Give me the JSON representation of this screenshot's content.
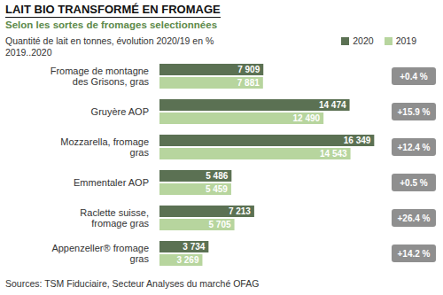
{
  "chart_data": {
    "type": "bar",
    "orientation": "horizontal",
    "title": "LAIT BIO TRANSFORMÉ EN FROMAGE",
    "subtitle": "Selon les sortes de fromages selectionnées",
    "description": "Quantité de lait en tonnes, évolution 2020/19 en %",
    "period": "2019..2020",
    "categories": [
      "Fromage de montagne des Grisons, gras",
      "Gruyère AOP",
      "Mozzarella, fromage gras",
      "Emmentaler AOP",
      "Raclette suisse, fromage gras",
      "Appenzeller® fromage gras"
    ],
    "series": [
      {
        "name": "2020",
        "color": "#5b7153",
        "values": [
          7909,
          14474,
          16349,
          5486,
          7213,
          3734
        ],
        "value_labels": [
          "7 909",
          "14 474",
          "16 349",
          "5 486",
          "7 213",
          "3 734"
        ]
      },
      {
        "name": "2019",
        "color": "#b7d59e",
        "values": [
          7881,
          12490,
          14543,
          5459,
          5705,
          3269
        ],
        "value_labels": [
          "7 881",
          "12 490",
          "14 543",
          "5 459",
          "5 705",
          "3 269"
        ]
      }
    ],
    "changes": [
      0.4,
      15.9,
      12.4,
      0.5,
      26.4,
      14.2
    ],
    "change_labels": [
      "+0.4 %",
      "+15.9 %",
      "+12.4 %",
      "+0.5 %",
      "+26.4 %",
      "+14.2 %"
    ],
    "xlim": [
      0,
      17000
    ],
    "tick_labels": false,
    "data_labels": true,
    "legend": "top right",
    "source": "Sources: TSM Fiduciaire, Secteur Analyses du marché OFAG"
  }
}
